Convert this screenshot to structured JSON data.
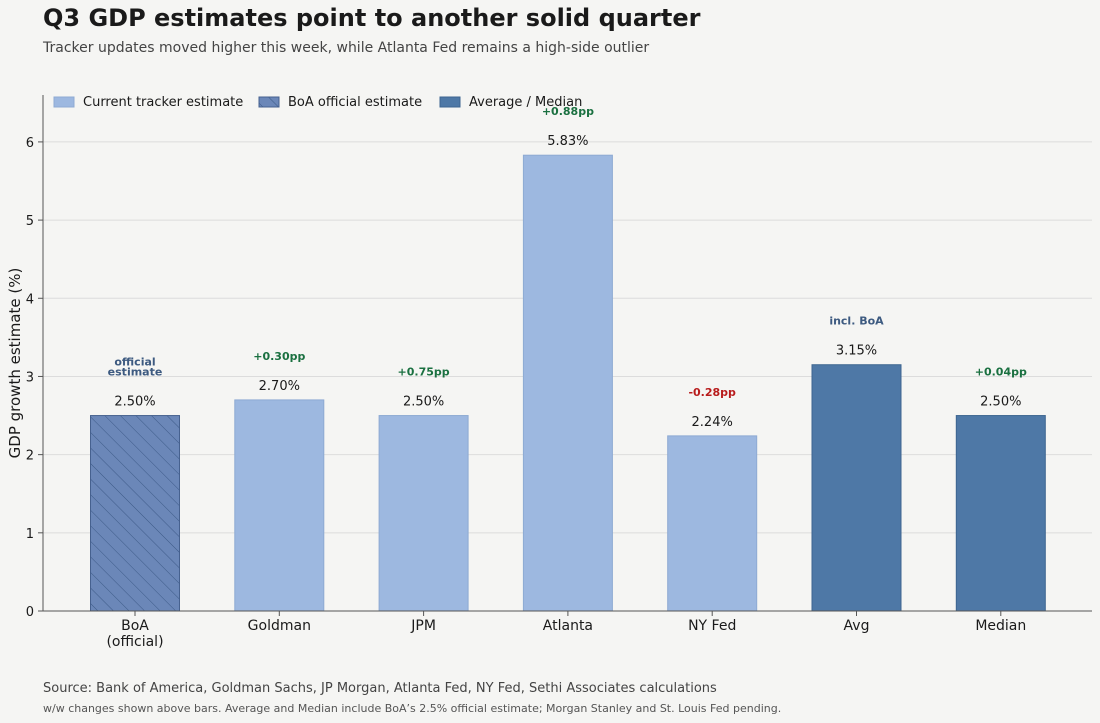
{
  "title": "Q3 GDP estimates point to another solid quarter",
  "subtitle": "Tracker updates moved higher this week, while Atlanta Fed remains a high-side outlier",
  "footer": {
    "source": "Source: Bank of America, Goldman Sachs, JP Morgan, Atlanta Fed, NY Fed, Sethi Associates calculations",
    "note": "w/w changes shown above bars. Average and Median include BoA’s 2.5% official estimate; Morgan Stanley and St. Louis Fed pending."
  },
  "colors": {
    "tracker": "#9db8e0",
    "official": "#6b87b8",
    "aggregate": "#4e78a6",
    "positive": "#1a7040",
    "negative": "#b81c1c",
    "note": "#3d5a80"
  },
  "chart_data": {
    "type": "bar",
    "ylabel": "GDP growth estimate (%)",
    "ylim": [
      0,
      6.6
    ],
    "yticks": [
      0,
      1,
      2,
      3,
      4,
      5,
      6
    ],
    "grid": true,
    "legend_position": "top-left",
    "legend": [
      {
        "label": "Current tracker estimate",
        "kind": "tracker"
      },
      {
        "label": "BoA official estimate",
        "kind": "official"
      },
      {
        "label": "Average / Median",
        "kind": "aggregate"
      }
    ],
    "categories": [
      "BoA\n(official)",
      "Goldman",
      "JPM",
      "Atlanta",
      "NY Fed",
      "Avg",
      "Median"
    ],
    "values": [
      2.5,
      2.7,
      2.5,
      5.83,
      2.24,
      3.15,
      2.5
    ],
    "value_labels": [
      "2.50%",
      "2.70%",
      "2.50%",
      "5.83%",
      "2.24%",
      "3.15%",
      "2.50%"
    ],
    "kinds": [
      "official",
      "tracker",
      "tracker",
      "tracker",
      "tracker",
      "aggregate",
      "aggregate"
    ],
    "annotations": [
      {
        "text": "official\nestimate",
        "tone": "note"
      },
      {
        "text": "+0.30pp",
        "tone": "positive"
      },
      {
        "text": "+0.75pp",
        "tone": "positive"
      },
      {
        "text": "+0.88pp",
        "tone": "positive"
      },
      {
        "text": "-0.28pp",
        "tone": "negative"
      },
      {
        "text": "incl. BoA",
        "tone": "note"
      },
      {
        "text": "+0.04pp",
        "tone": "positive"
      }
    ]
  }
}
